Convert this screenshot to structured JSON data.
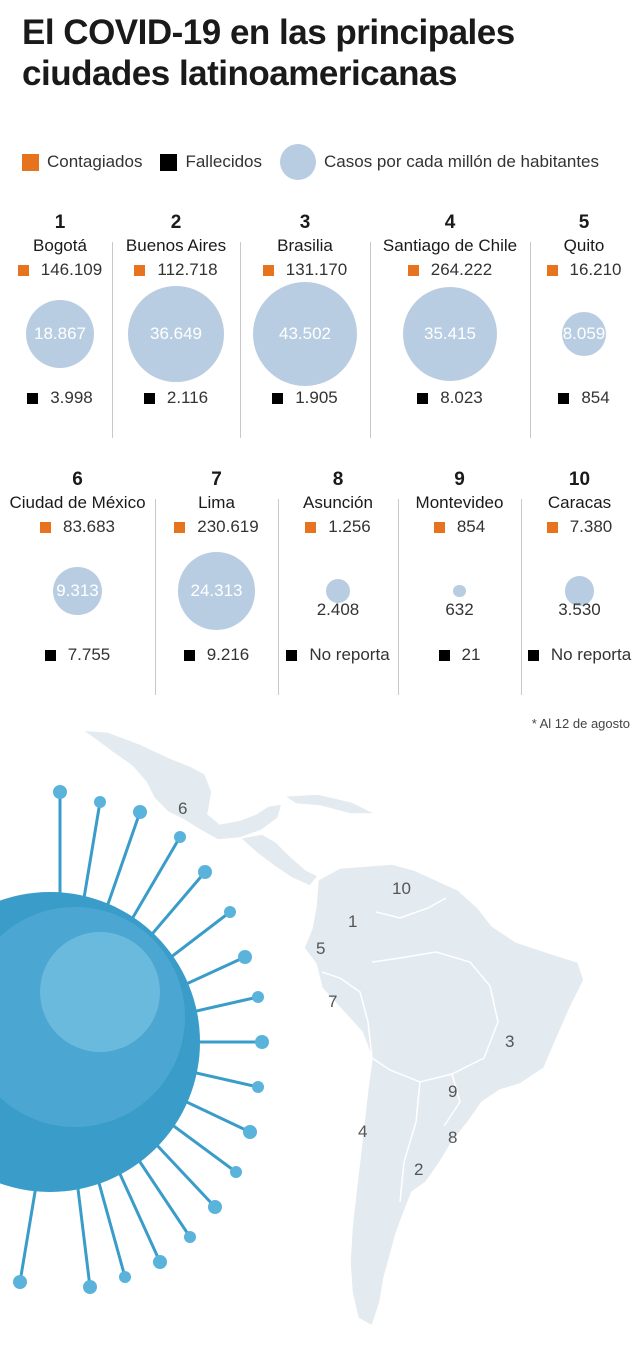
{
  "title": "El COVID-19 en las principales ciudades latinoamericanas",
  "legend": {
    "contagiados": "Contagiados",
    "fallecidos": "Fallecidos",
    "casos": "Casos por cada millón de habitantes"
  },
  "colors": {
    "orange": "#e8731e",
    "black": "#000000",
    "bubble": "#b9cde2",
    "map": "#e3eaf0",
    "virus": "#3a9cc8"
  },
  "cities": [
    {
      "rank": "1",
      "name": "Bogotá",
      "contagiados": "146.109",
      "casos": "18.867",
      "fallecidos": "3.998"
    },
    {
      "rank": "2",
      "name": "Buenos Aires",
      "contagiados": "112.718",
      "casos": "36.649",
      "fallecidos": "2.116"
    },
    {
      "rank": "3",
      "name": "Brasilia",
      "contagiados": "131.170",
      "casos": "43.502",
      "fallecidos": "1.905"
    },
    {
      "rank": "4",
      "name": "Santiago de Chile",
      "contagiados": "264.222",
      "casos": "35.415",
      "fallecidos": "8.023"
    },
    {
      "rank": "5",
      "name": "Quito",
      "contagiados": "16.210",
      "casos": "8.059",
      "fallecidos": "854"
    },
    {
      "rank": "6",
      "name": "Ciudad de México",
      "contagiados": "83.683",
      "casos": "9.313",
      "fallecidos": "7.755"
    },
    {
      "rank": "7",
      "name": "Lima",
      "contagiados": "230.619",
      "casos": "24.313",
      "fallecidos": "9.216"
    },
    {
      "rank": "8",
      "name": "Asunción",
      "contagiados": "1.256",
      "casos": "2.408",
      "fallecidos": "No reporta"
    },
    {
      "rank": "9",
      "name": "Montevideo",
      "contagiados": "854",
      "casos": "632",
      "fallecidos": "21"
    },
    {
      "rank": "10",
      "name": "Caracas",
      "contagiados": "7.380",
      "casos": "3.530",
      "fallecidos": "No reporta"
    }
  ],
  "note": "* Al 12 de agosto",
  "map_labels": [
    "6",
    "10",
    "1",
    "5",
    "7",
    "3",
    "9",
    "4",
    "8",
    "2"
  ]
}
